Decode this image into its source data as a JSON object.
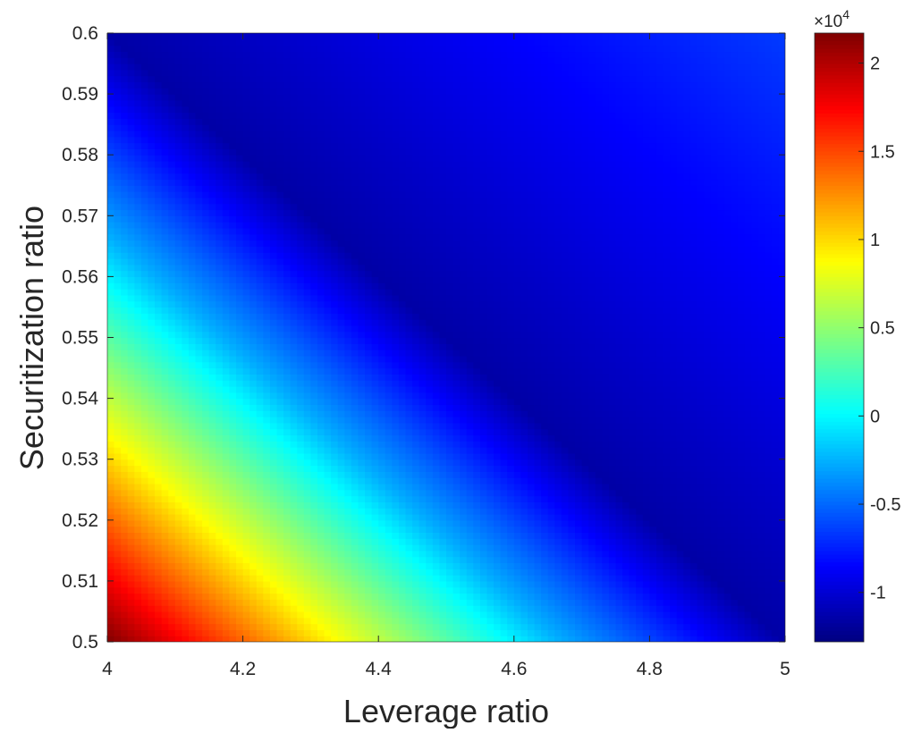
{
  "chart_data": {
    "type": "heatmap",
    "title": "",
    "xlabel": "Leverage ratio",
    "ylabel": "Securitization ratio",
    "xlim": [
      4,
      5
    ],
    "ylim": [
      0.5,
      0.6
    ],
    "x_ticks": [
      4,
      4.2,
      4.4,
      4.6,
      4.8,
      5
    ],
    "x_tick_labels": [
      "4",
      "4.2",
      "4.4",
      "4.6",
      "4.8",
      "5"
    ],
    "y_ticks": [
      0.5,
      0.51,
      0.52,
      0.53,
      0.54,
      0.55,
      0.56,
      0.57,
      0.58,
      0.59,
      0.6
    ],
    "y_tick_labels": [
      "0.5",
      "0.51",
      "0.52",
      "0.53",
      "0.54",
      "0.55",
      "0.56",
      "0.57",
      "0.58",
      "0.59",
      "0.6"
    ],
    "grid": false,
    "colormap": "jet",
    "colorbar": {
      "range": [
        -12800,
        21700
      ],
      "ticks": [
        -10000,
        -5000,
        0,
        5000,
        10000,
        15000,
        20000
      ],
      "tick_labels": [
        "-1",
        "-0.5",
        "0",
        "0.5",
        "1",
        "1.5",
        "2"
      ],
      "exponent_label": "×10",
      "exponent_power": "4"
    },
    "z_samples": [
      {
        "x": 4.0,
        "y": 0.5,
        "z": 21700
      },
      {
        "x": 4.37,
        "y": 0.5,
        "z": 9000
      },
      {
        "x": 4.63,
        "y": 0.5,
        "z": -2500
      },
      {
        "x": 5.0,
        "y": 0.5,
        "z": -12800
      },
      {
        "x": 4.0,
        "y": 0.55,
        "z": 2500
      },
      {
        "x": 4.0,
        "y": 0.6,
        "z": -8000
      },
      {
        "x": 4.5,
        "y": 0.6,
        "z": -9500
      },
      {
        "x": 5.0,
        "y": 0.6,
        "z": -6500
      },
      {
        "x": 4.5,
        "y": 0.55,
        "z": -11500
      }
    ]
  }
}
